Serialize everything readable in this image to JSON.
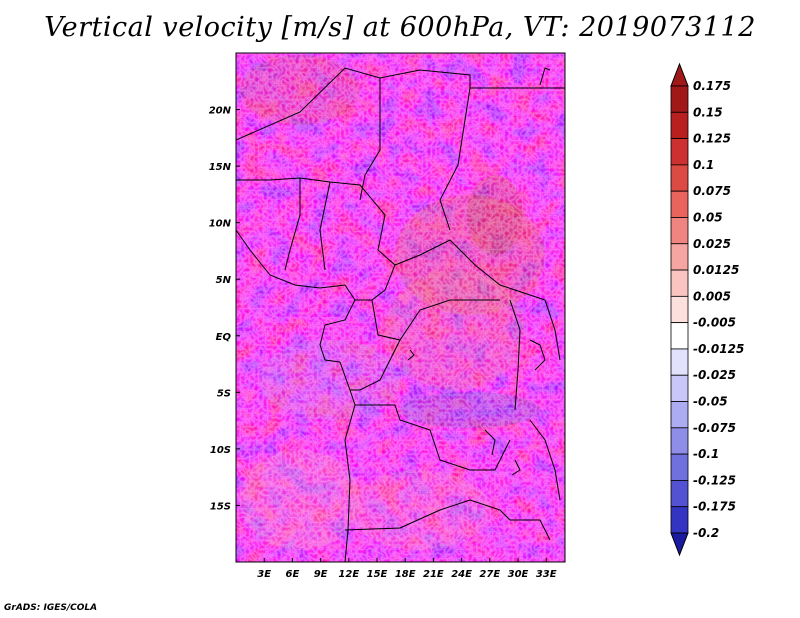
{
  "title": "Vertical velocity [m/s] at 600hPa, VT: 2019073112",
  "credit": "GrADS: IGES/COLA",
  "map": {
    "lon_range": [
      0,
      35
    ],
    "lat_range": [
      -20,
      25
    ],
    "xticks": [
      {
        "value": 3,
        "label": "3E"
      },
      {
        "value": 6,
        "label": "6E"
      },
      {
        "value": 9,
        "label": "9E"
      },
      {
        "value": 12,
        "label": "12E"
      },
      {
        "value": 15,
        "label": "15E"
      },
      {
        "value": 18,
        "label": "18E"
      },
      {
        "value": 21,
        "label": "21E"
      },
      {
        "value": 24,
        "label": "24E"
      },
      {
        "value": 27,
        "label": "27E"
      },
      {
        "value": 30,
        "label": "30E"
      },
      {
        "value": 33,
        "label": "33E"
      }
    ],
    "yticks": [
      {
        "value": 20,
        "label": "20N"
      },
      {
        "value": 15,
        "label": "15N"
      },
      {
        "value": 10,
        "label": "10N"
      },
      {
        "value": 5,
        "label": "5N"
      },
      {
        "value": 0,
        "label": "EQ"
      },
      {
        "value": -5,
        "label": "5S"
      },
      {
        "value": -10,
        "label": "10S"
      },
      {
        "value": -15,
        "label": "15S"
      }
    ]
  },
  "colorbar": {
    "levels": [
      {
        "label": "0.175",
        "color": "#a01818"
      },
      {
        "label": "0.15",
        "color": "#b82020"
      },
      {
        "label": "0.125",
        "color": "#cc3030"
      },
      {
        "label": "0.1",
        "color": "#dc4a44"
      },
      {
        "label": "0.075",
        "color": "#e8645c"
      },
      {
        "label": "0.05",
        "color": "#f08480"
      },
      {
        "label": "0.025",
        "color": "#f6a6a2"
      },
      {
        "label": "0.0125",
        "color": "#fac4c0"
      },
      {
        "label": "0.005",
        "color": "#fce0de"
      },
      {
        "label": "-0.005",
        "color": "#ffffff"
      },
      {
        "label": "-0.0125",
        "color": "#e2e2fc"
      },
      {
        "label": "-0.025",
        "color": "#c8c8f8"
      },
      {
        "label": "-0.05",
        "color": "#acacf2"
      },
      {
        "label": "-0.075",
        "color": "#8e8ee8"
      },
      {
        "label": "-0.1",
        "color": "#7070de"
      },
      {
        "label": "-0.125",
        "color": "#5252d2"
      },
      {
        "label": "-0.175",
        "color": "#3434c2"
      },
      {
        "label": "-0.2",
        "color": "#2020aa"
      }
    ],
    "max_color": "#a01818",
    "min_color": "#1a1aa0"
  }
}
